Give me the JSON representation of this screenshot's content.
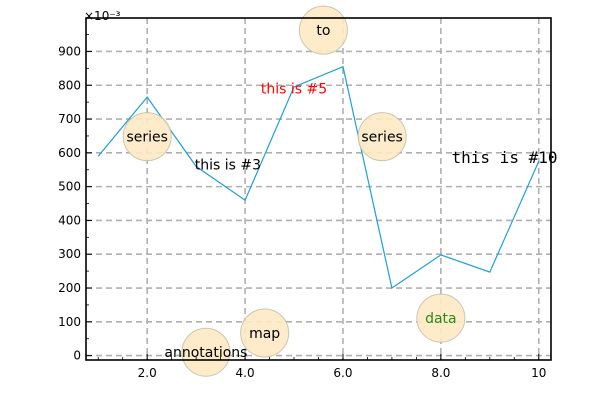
{
  "chart_data": {
    "type": "line",
    "title": "",
    "xlabel": "",
    "ylabel": "",
    "y_scale_label": "×10⁻³",
    "xlim": [
      0.75,
      10.25
    ],
    "ylim": [
      -0.013,
      0.999
    ],
    "grid": true,
    "x_ticks": [
      2,
      4,
      6,
      8,
      10
    ],
    "x_tick_labels": [
      "2.0",
      "4.0",
      "6.0",
      "8.0",
      "10"
    ],
    "y_ticks": [
      0,
      0.1,
      0.2,
      0.3,
      0.4,
      0.5,
      0.6,
      0.7,
      0.8,
      0.9
    ],
    "y_tick_labels": [
      "0",
      "100",
      "200",
      "300",
      "400",
      "500",
      "600",
      "700",
      "800",
      "900"
    ],
    "series": [
      {
        "color": "#1f9fd8",
        "x": [
          1,
          2,
          3,
          4,
          5,
          6,
          7,
          8,
          9,
          10
        ],
        "y": [
          0.59,
          0.765,
          0.56,
          0.46,
          0.795,
          0.855,
          0.2,
          0.298,
          0.247,
          0.575
        ]
      }
    ],
    "annotations": [
      {
        "text": "series",
        "x": 2.0,
        "y": 0.648,
        "bubble": true,
        "color": "#000000"
      },
      {
        "text": "this is #3",
        "x": 3.65,
        "y": 0.565,
        "bubble": false,
        "color": "#000000"
      },
      {
        "text": "annotations",
        "x": 3.2,
        "y": 0.01,
        "bubble": true,
        "color": "#000000"
      },
      {
        "text": "map",
        "x": 4.4,
        "y": 0.067,
        "bubble": true,
        "color": "#000000"
      },
      {
        "text": "this is #5",
        "x": 5.0,
        "y": 0.79,
        "bubble": false,
        "color": "#ff0000"
      },
      {
        "text": "to",
        "x": 5.6,
        "y": 0.963,
        "bubble": true,
        "color": "#000000"
      },
      {
        "text": "series",
        "x": 6.8,
        "y": 0.648,
        "bubble": true,
        "color": "#000000"
      },
      {
        "text": "this is #10",
        "x": 9.3,
        "y": 0.585,
        "bubble": false,
        "mono": true,
        "color": "#000000"
      },
      {
        "text": "data",
        "x": 8.0,
        "y": 0.111,
        "bubble": true,
        "color": "#2a8a16"
      }
    ],
    "colors": {
      "bubble_fill": "#fde9c4",
      "bubble_stroke": "#c8c0a8",
      "grid": "#b0b0b0",
      "axis": "#000000"
    }
  }
}
